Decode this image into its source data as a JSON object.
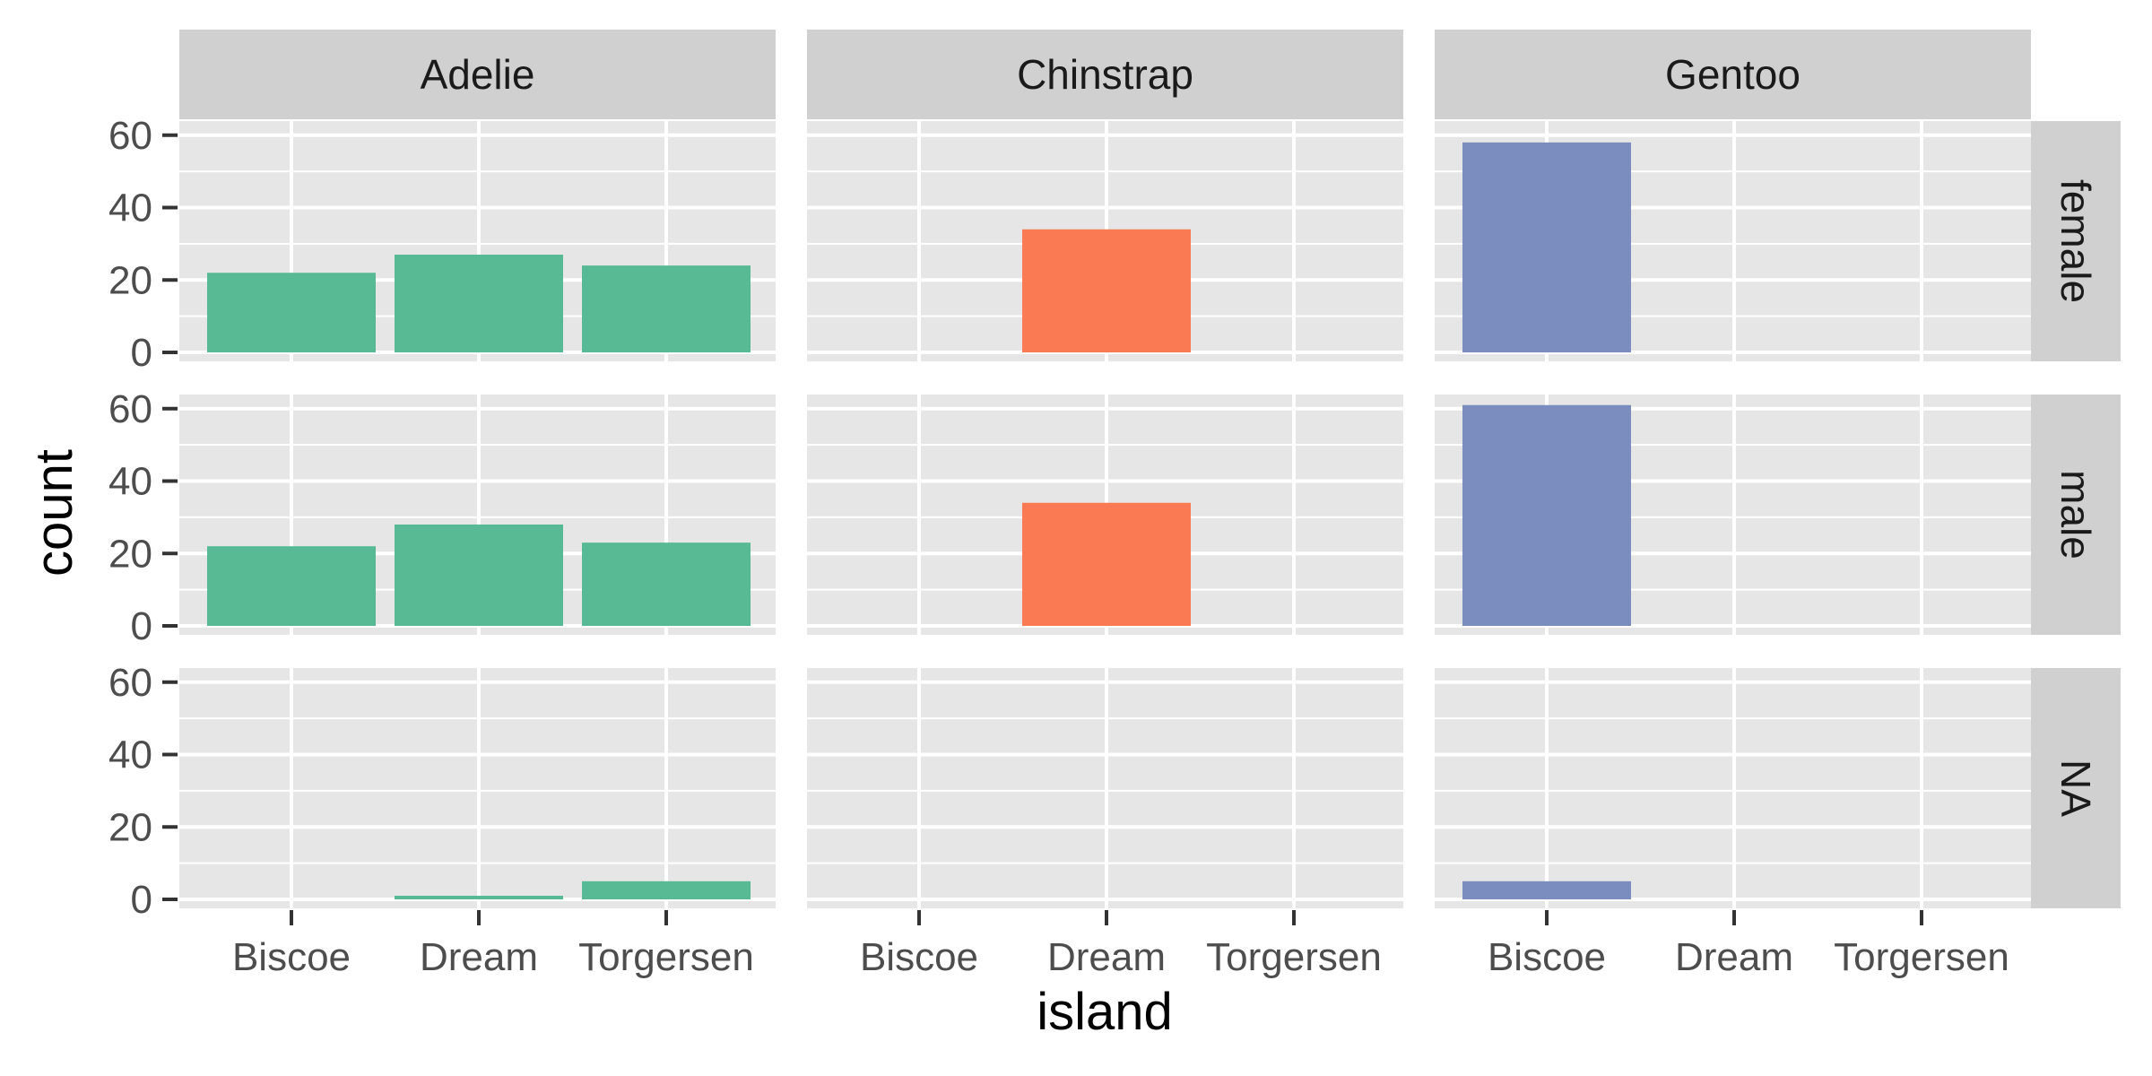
{
  "chart_data": {
    "type": "bar",
    "xlabel": "island",
    "ylabel": "count",
    "ylim": [
      0,
      60
    ],
    "y_ticks": [
      0,
      20,
      40,
      60
    ],
    "facet_cols": [
      "Adelie",
      "Chinstrap",
      "Gentoo"
    ],
    "facet_rows": [
      "female",
      "male",
      "NA"
    ],
    "categories": [
      "Biscoe",
      "Dream",
      "Torgersen"
    ],
    "colors": {
      "Adelie": "#57BA94",
      "Chinstrap": "#F97A53",
      "Gentoo": "#7B8DBE",
      "panel_bg": "#E6E6E6",
      "strip_bg": "#D0D0D0",
      "grid": "#FFFFFF"
    },
    "grid": true,
    "legend": "none",
    "values": {
      "female": {
        "Adelie": [
          22,
          27,
          24
        ],
        "Chinstrap": [
          0,
          34,
          0
        ],
        "Gentoo": [
          58,
          0,
          0
        ]
      },
      "male": {
        "Adelie": [
          22,
          28,
          23
        ],
        "Chinstrap": [
          0,
          34,
          0
        ],
        "Gentoo": [
          61,
          0,
          0
        ]
      },
      "NA": {
        "Adelie": [
          0,
          1,
          5
        ],
        "Chinstrap": [
          0,
          0,
          0
        ],
        "Gentoo": [
          5,
          0,
          0
        ]
      }
    }
  }
}
